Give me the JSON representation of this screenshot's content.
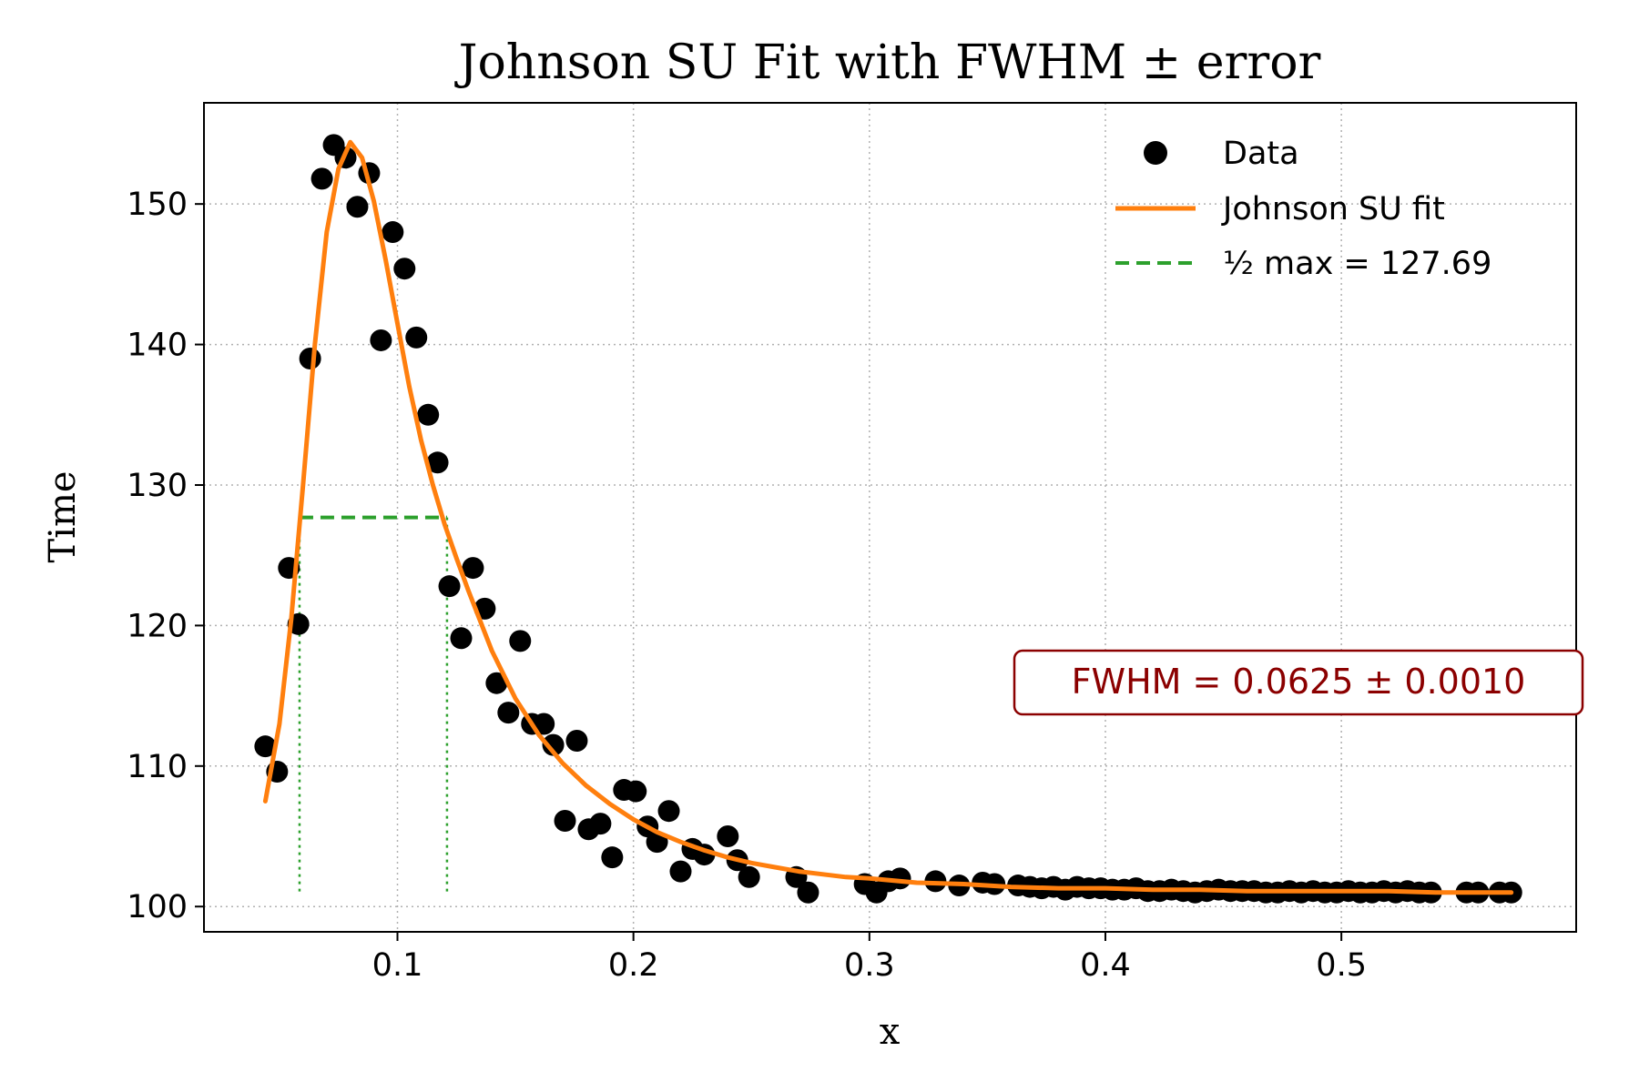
{
  "chart_data": {
    "type": "scatter",
    "title": "Johnson SU Fit with FWHM ± error",
    "xlabel": "x",
    "ylabel": "Time",
    "xlim": [
      0.018,
      0.5995
    ],
    "ylim": [
      98.2,
      157.2
    ],
    "xticks": [
      0.1,
      0.2,
      0.3,
      0.4,
      0.5
    ],
    "xtick_labels": [
      "0.1",
      "0.2",
      "0.3",
      "0.4",
      "0.5"
    ],
    "yticks": [
      100,
      110,
      120,
      130,
      140,
      150
    ],
    "ytick_labels": [
      "100",
      "110",
      "120",
      "130",
      "140",
      "150"
    ],
    "grid": true,
    "legend_position": "top-right",
    "legend": [
      {
        "label": "Data",
        "kind": "marker",
        "color": "#000000"
      },
      {
        "label": "Johnson SU fit",
        "kind": "line",
        "color": "#ff7f0e"
      },
      {
        "label": "½ max = 127.69",
        "kind": "dashed",
        "color": "#2ca02c"
      }
    ],
    "annotation": {
      "text": "FWHM = 0.0625 ± 0.0010",
      "color": "#8b0000"
    },
    "series": [
      {
        "name": "Data",
        "kind": "scatter",
        "color": "#000000",
        "points": [
          [
            0.044,
            111.4
          ],
          [
            0.049,
            109.6
          ],
          [
            0.054,
            124.1
          ],
          [
            0.058,
            120.1
          ],
          [
            0.063,
            139.0
          ],
          [
            0.068,
            151.8
          ],
          [
            0.073,
            154.2
          ],
          [
            0.078,
            153.3
          ],
          [
            0.083,
            149.8
          ],
          [
            0.088,
            152.2
          ],
          [
            0.093,
            140.3
          ],
          [
            0.098,
            148.0
          ],
          [
            0.103,
            145.4
          ],
          [
            0.108,
            140.5
          ],
          [
            0.113,
            135.0
          ],
          [
            0.117,
            131.6
          ],
          [
            0.122,
            122.8
          ],
          [
            0.127,
            119.1
          ],
          [
            0.132,
            124.1
          ],
          [
            0.137,
            121.2
          ],
          [
            0.142,
            115.9
          ],
          [
            0.147,
            113.8
          ],
          [
            0.152,
            118.9
          ],
          [
            0.157,
            113.0
          ],
          [
            0.162,
            113.0
          ],
          [
            0.166,
            111.5
          ],
          [
            0.171,
            106.1
          ],
          [
            0.176,
            111.8
          ],
          [
            0.181,
            105.5
          ],
          [
            0.186,
            105.9
          ],
          [
            0.191,
            103.5
          ],
          [
            0.196,
            108.3
          ],
          [
            0.201,
            108.2
          ],
          [
            0.206,
            105.7
          ],
          [
            0.21,
            104.6
          ],
          [
            0.215,
            106.8
          ],
          [
            0.22,
            102.5
          ],
          [
            0.225,
            104.1
          ],
          [
            0.23,
            103.7
          ],
          [
            0.24,
            105.0
          ],
          [
            0.244,
            103.3
          ],
          [
            0.249,
            102.1
          ],
          [
            0.269,
            102.1
          ],
          [
            0.274,
            101.0
          ],
          [
            0.298,
            101.6
          ],
          [
            0.303,
            101.0
          ],
          [
            0.308,
            101.8
          ],
          [
            0.313,
            102.0
          ],
          [
            0.328,
            101.8
          ],
          [
            0.338,
            101.5
          ],
          [
            0.348,
            101.7
          ],
          [
            0.353,
            101.6
          ],
          [
            0.363,
            101.5
          ],
          [
            0.368,
            101.4
          ],
          [
            0.373,
            101.3
          ],
          [
            0.378,
            101.4
          ],
          [
            0.383,
            101.2
          ],
          [
            0.388,
            101.4
          ],
          [
            0.393,
            101.3
          ],
          [
            0.398,
            101.3
          ],
          [
            0.403,
            101.2
          ],
          [
            0.408,
            101.2
          ],
          [
            0.413,
            101.3
          ],
          [
            0.418,
            101.1
          ],
          [
            0.423,
            101.1
          ],
          [
            0.428,
            101.2
          ],
          [
            0.433,
            101.1
          ],
          [
            0.438,
            101.0
          ],
          [
            0.443,
            101.1
          ],
          [
            0.448,
            101.2
          ],
          [
            0.453,
            101.1
          ],
          [
            0.458,
            101.1
          ],
          [
            0.463,
            101.1
          ],
          [
            0.468,
            101.0
          ],
          [
            0.473,
            101.0
          ],
          [
            0.478,
            101.1
          ],
          [
            0.483,
            101.0
          ],
          [
            0.488,
            101.1
          ],
          [
            0.493,
            101.0
          ],
          [
            0.498,
            101.0
          ],
          [
            0.503,
            101.1
          ],
          [
            0.508,
            101.0
          ],
          [
            0.513,
            101.0
          ],
          [
            0.518,
            101.1
          ],
          [
            0.523,
            101.0
          ],
          [
            0.528,
            101.1
          ],
          [
            0.533,
            101.0
          ],
          [
            0.538,
            101.0
          ],
          [
            0.553,
            101.0
          ],
          [
            0.558,
            101.0
          ],
          [
            0.567,
            101.0
          ],
          [
            0.572,
            101.0
          ]
        ]
      },
      {
        "name": "Johnson SU fit",
        "kind": "line",
        "color": "#ff7f0e",
        "points": [
          [
            0.044,
            107.5
          ],
          [
            0.05,
            113.0
          ],
          [
            0.055,
            120.5
          ],
          [
            0.06,
            130.0
          ],
          [
            0.065,
            140.0
          ],
          [
            0.07,
            148.0
          ],
          [
            0.075,
            152.5
          ],
          [
            0.08,
            154.4
          ],
          [
            0.085,
            153.3
          ],
          [
            0.09,
            150.2
          ],
          [
            0.095,
            146.0
          ],
          [
            0.1,
            141.5
          ],
          [
            0.105,
            137.0
          ],
          [
            0.11,
            133.2
          ],
          [
            0.115,
            130.0
          ],
          [
            0.12,
            127.2
          ],
          [
            0.125,
            124.8
          ],
          [
            0.13,
            122.5
          ],
          [
            0.14,
            118.2
          ],
          [
            0.15,
            114.8
          ],
          [
            0.16,
            112.2
          ],
          [
            0.17,
            110.2
          ],
          [
            0.18,
            108.6
          ],
          [
            0.19,
            107.3
          ],
          [
            0.2,
            106.2
          ],
          [
            0.21,
            105.3
          ],
          [
            0.22,
            104.6
          ],
          [
            0.23,
            104.0
          ],
          [
            0.24,
            103.5
          ],
          [
            0.25,
            103.1
          ],
          [
            0.26,
            102.8
          ],
          [
            0.27,
            102.5
          ],
          [
            0.28,
            102.3
          ],
          [
            0.29,
            102.1
          ],
          [
            0.3,
            102.0
          ],
          [
            0.32,
            101.7
          ],
          [
            0.34,
            101.6
          ],
          [
            0.36,
            101.4
          ],
          [
            0.38,
            101.3
          ],
          [
            0.4,
            101.3
          ],
          [
            0.42,
            101.2
          ],
          [
            0.44,
            101.2
          ],
          [
            0.46,
            101.1
          ],
          [
            0.48,
            101.1
          ],
          [
            0.5,
            101.1
          ],
          [
            0.52,
            101.1
          ],
          [
            0.54,
            101.0
          ],
          [
            0.56,
            101.0
          ],
          [
            0.572,
            101.0
          ]
        ]
      }
    ],
    "half_max": {
      "y": 127.69,
      "x_left": 0.0585,
      "x_right": 0.121,
      "y_base": 101.0,
      "color": "#2ca02c"
    }
  }
}
